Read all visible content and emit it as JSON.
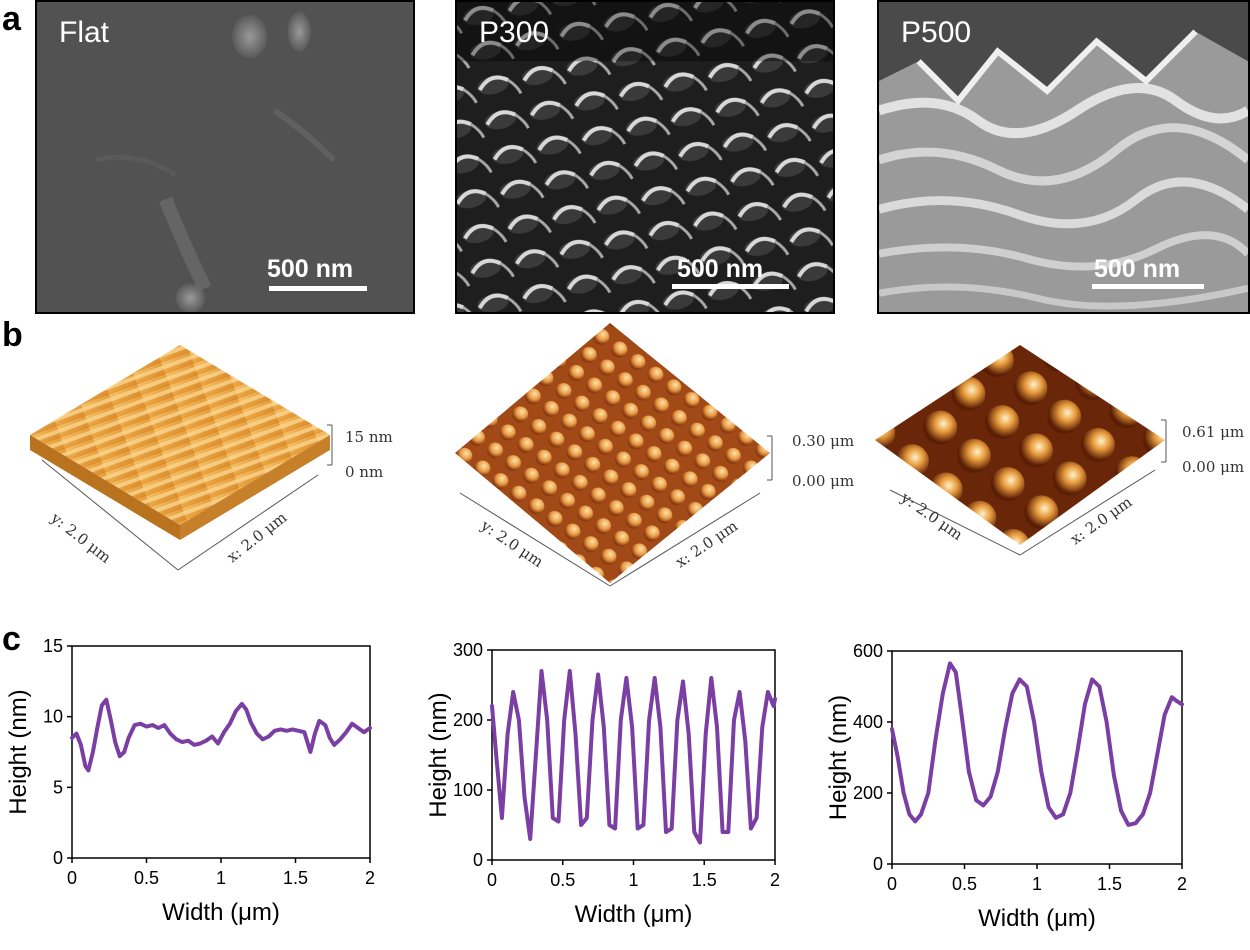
{
  "panel_letters": {
    "a": "a",
    "b": "b",
    "c": "c"
  },
  "sem": [
    {
      "label": "Flat",
      "scale": "500 nm",
      "style": "flat"
    },
    {
      "label": "P300",
      "scale": "500 nm",
      "style": "p300"
    },
    {
      "label": "P500",
      "scale": "500 nm",
      "style": "p500"
    }
  ],
  "afm": [
    {
      "z_top": "15 nm",
      "z_bottom": "0 nm",
      "y_axis": "y: 2.0 μm",
      "x_axis": "x: 2.0 μm",
      "style": "flat"
    },
    {
      "z_top": "0.30 μm",
      "z_bottom": "0.00 μm",
      "y_axis": "y: 2.0 μm",
      "x_axis": "x: 2.0 μm",
      "style": "p300"
    },
    {
      "z_top": "0.61 μm",
      "z_bottom": "0.00 μm",
      "y_axis": "y: 2.0 μm",
      "x_axis": "x: 2.0 μm",
      "style": "p500"
    }
  ],
  "colors": {
    "line": "#7b3fa3",
    "afm_light": "#f3b85a",
    "afm_dark": "#7a2e0a"
  },
  "chart_data": [
    {
      "type": "line",
      "xlabel": "Width (μm)",
      "ylabel": "Height (nm)",
      "xlim": [
        0,
        2
      ],
      "ylim": [
        0,
        15
      ],
      "xticks": [
        "0",
        "0.5",
        "1",
        "1.5",
        "2"
      ],
      "yticks": [
        "0",
        "5",
        "10",
        "15"
      ],
      "series": [
        {
          "x": [
            0,
            0.03,
            0.06,
            0.09,
            0.11,
            0.14,
            0.17,
            0.2,
            0.23,
            0.26,
            0.29,
            0.32,
            0.35,
            0.38,
            0.42,
            0.46,
            0.5,
            0.54,
            0.58,
            0.62,
            0.66,
            0.7,
            0.74,
            0.78,
            0.82,
            0.86,
            0.9,
            0.94,
            0.98,
            1.02,
            1.06,
            1.1,
            1.14,
            1.17,
            1.2,
            1.24,
            1.28,
            1.32,
            1.36,
            1.4,
            1.44,
            1.48,
            1.52,
            1.56,
            1.6,
            1.63,
            1.66,
            1.7,
            1.73,
            1.76,
            1.8,
            1.84,
            1.88,
            1.92,
            1.96,
            2.0
          ],
          "values": [
            8.5,
            8.8,
            8.0,
            6.5,
            6.2,
            7.5,
            9.2,
            10.8,
            11.2,
            9.8,
            8.2,
            7.2,
            7.5,
            8.5,
            9.4,
            9.5,
            9.3,
            9.4,
            9.2,
            9.4,
            8.8,
            8.4,
            8.2,
            8.3,
            8.0,
            8.1,
            8.3,
            8.6,
            8.1,
            8.9,
            9.5,
            10.4,
            10.9,
            10.5,
            9.6,
            8.8,
            8.4,
            8.6,
            9.0,
            9.1,
            9.0,
            9.1,
            9.0,
            8.9,
            7.5,
            8.8,
            9.7,
            9.4,
            8.5,
            8.0,
            8.4,
            8.9,
            9.5,
            9.2,
            8.9,
            9.2
          ]
        }
      ]
    },
    {
      "type": "line",
      "xlabel": "Width (μm)",
      "ylabel": "Height (nm)",
      "xlim": [
        0,
        2
      ],
      "ylim": [
        0,
        300
      ],
      "xticks": [
        "0",
        "0.5",
        "1",
        "1.5",
        "2"
      ],
      "yticks": [
        "0",
        "100",
        "200",
        "300"
      ],
      "series": [
        {
          "x": [
            0,
            0.03,
            0.07,
            0.11,
            0.15,
            0.19,
            0.23,
            0.27,
            0.31,
            0.35,
            0.39,
            0.43,
            0.47,
            0.51,
            0.55,
            0.59,
            0.63,
            0.67,
            0.71,
            0.75,
            0.79,
            0.83,
            0.87,
            0.91,
            0.95,
            0.99,
            1.03,
            1.07,
            1.11,
            1.15,
            1.19,
            1.23,
            1.27,
            1.31,
            1.35,
            1.39,
            1.43,
            1.47,
            1.51,
            1.55,
            1.59,
            1.63,
            1.67,
            1.71,
            1.75,
            1.79,
            1.83,
            1.87,
            1.91,
            1.95,
            1.99,
            2.0
          ],
          "values": [
            220,
            150,
            60,
            180,
            240,
            200,
            90,
            30,
            150,
            270,
            200,
            60,
            55,
            200,
            270,
            180,
            50,
            60,
            200,
            265,
            190,
            50,
            45,
            200,
            260,
            190,
            45,
            50,
            200,
            260,
            190,
            40,
            45,
            200,
            255,
            180,
            40,
            25,
            180,
            260,
            190,
            40,
            40,
            200,
            240,
            170,
            45,
            60,
            190,
            240,
            220,
            230
          ]
        }
      ]
    },
    {
      "type": "line",
      "xlabel": "Width (μm)",
      "ylabel": "Height (nm)",
      "xlim": [
        0,
        2
      ],
      "ylim": [
        0,
        600
      ],
      "xticks": [
        "0",
        "0.5",
        "1",
        "1.5",
        "2"
      ],
      "yticks": [
        "0",
        "200",
        "400",
        "600"
      ],
      "series": [
        {
          "x": [
            0,
            0.04,
            0.08,
            0.12,
            0.16,
            0.2,
            0.25,
            0.3,
            0.35,
            0.4,
            0.44,
            0.48,
            0.53,
            0.58,
            0.63,
            0.68,
            0.73,
            0.78,
            0.83,
            0.88,
            0.93,
            0.98,
            1.03,
            1.08,
            1.13,
            1.18,
            1.23,
            1.28,
            1.33,
            1.38,
            1.43,
            1.48,
            1.53,
            1.58,
            1.63,
            1.68,
            1.73,
            1.78,
            1.83,
            1.88,
            1.93,
            1.96,
            1.98,
            2.0
          ],
          "values": [
            380,
            300,
            200,
            140,
            120,
            140,
            200,
            350,
            480,
            565,
            540,
            420,
            260,
            180,
            165,
            190,
            260,
            380,
            480,
            520,
            500,
            400,
            260,
            160,
            130,
            140,
            200,
            320,
            450,
            520,
            500,
            400,
            250,
            150,
            110,
            115,
            140,
            200,
            310,
            420,
            470,
            460,
            455,
            450
          ]
        }
      ]
    }
  ]
}
